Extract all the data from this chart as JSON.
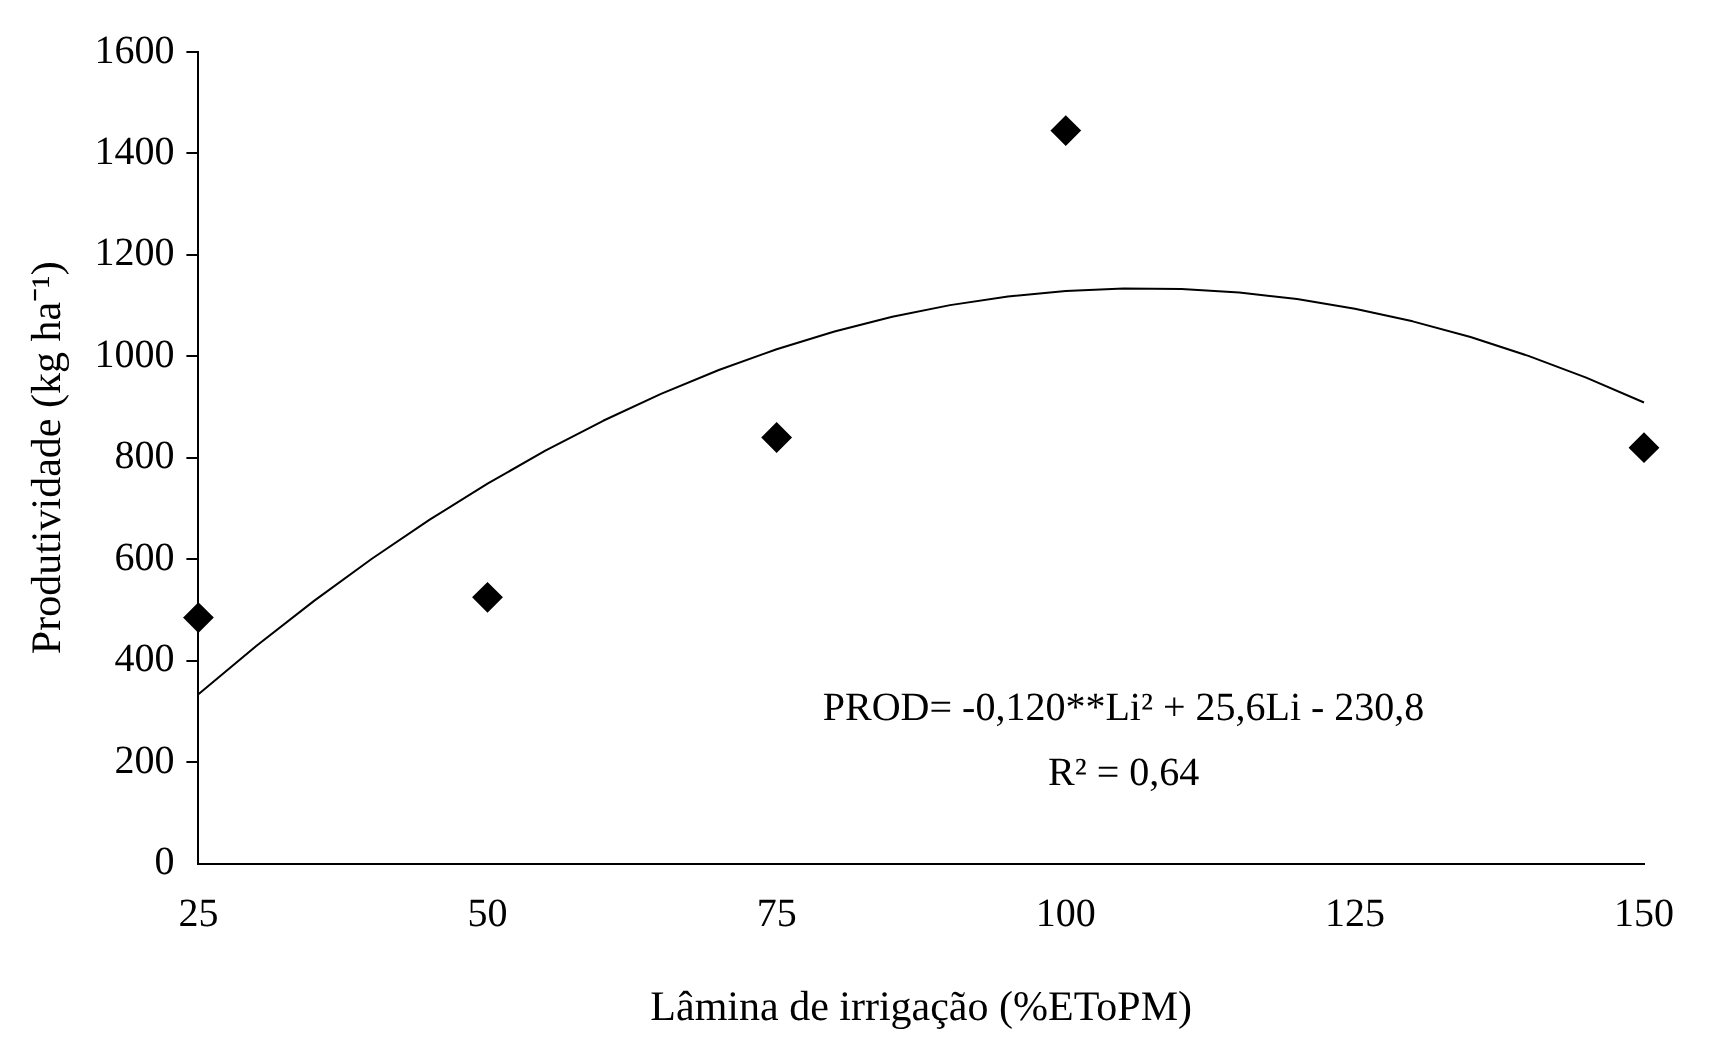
{
  "chart_data": {
    "type": "scatter",
    "xlabel": "Lâmina de irrigação (%EToPM)",
    "ylabel": "Produtividade (kg ha⁻¹)",
    "xlim": [
      25,
      150
    ],
    "xticks": [
      25,
      50,
      75,
      100,
      125,
      150
    ],
    "ylim": [
      0,
      1600
    ],
    "yticks": [
      0,
      200,
      400,
      600,
      800,
      1000,
      1200,
      1400,
      1600
    ],
    "annotations": [
      "PROD= -0,120**Li² + 25,6Li - 230,8",
      "R² = 0,64"
    ],
    "series": [
      {
        "type": "scatter",
        "marker": "diamond",
        "color": "#000000",
        "x": [
          25,
          50,
          75,
          100,
          150
        ],
        "values": [
          485,
          525,
          840,
          1445,
          820
        ]
      },
      {
        "type": "line",
        "marker": "none",
        "color": "#000000",
        "x": [
          25,
          30,
          35,
          40,
          45,
          50,
          55,
          60,
          65,
          70,
          75,
          80,
          85,
          90,
          95,
          100,
          105,
          110,
          115,
          120,
          125,
          130,
          135,
          140,
          145,
          150
        ],
        "values": [
          334,
          429,
          518,
          601,
          678,
          749,
          814,
          873,
          926,
          973,
          1014,
          1049,
          1078,
          1101,
          1118,
          1129,
          1134,
          1133,
          1126,
          1113,
          1094,
          1069,
          1038,
          1001,
          958,
          909
        ]
      }
    ]
  }
}
